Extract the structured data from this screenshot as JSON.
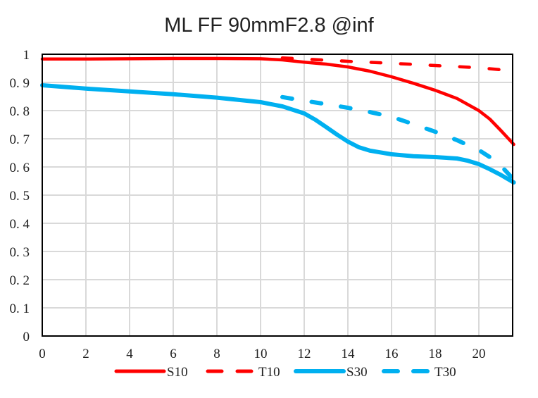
{
  "chart_data": {
    "type": "line",
    "title": "ML FF 90mmF2.8 @inf",
    "xlabel": "",
    "ylabel": "",
    "xlim": [
      0,
      21.6
    ],
    "ylim": [
      0,
      1
    ],
    "grid": true,
    "legend_position": "bottom",
    "x_ticks": [
      "0",
      "2",
      "4",
      "6",
      "8",
      "10",
      "12",
      "14",
      "16",
      "18",
      "20"
    ],
    "x_tick_values": [
      0,
      2,
      4,
      6,
      8,
      10,
      12,
      14,
      16,
      18,
      20
    ],
    "y_ticks": [
      "0",
      "0. 1",
      "0. 2",
      "0. 3",
      "0. 4",
      "0. 5",
      "0. 6",
      "0. 7",
      "0. 8",
      "0. 9",
      "1"
    ],
    "y_tick_values": [
      0,
      0.1,
      0.2,
      0.3,
      0.4,
      0.5,
      0.6,
      0.7,
      0.8,
      0.9,
      1
    ],
    "series": [
      {
        "name": "S10",
        "color": "#ff0000",
        "dash": false,
        "x": [
          0,
          2,
          4,
          6,
          8,
          10,
          11,
          12,
          13,
          14,
          15,
          16,
          17,
          18,
          19,
          20,
          20.5,
          21,
          21.6
        ],
        "y": [
          0.983,
          0.983,
          0.984,
          0.985,
          0.985,
          0.984,
          0.98,
          0.972,
          0.965,
          0.955,
          0.94,
          0.92,
          0.897,
          0.872,
          0.843,
          0.8,
          0.77,
          0.73,
          0.68
        ]
      },
      {
        "name": "T10",
        "color": "#ff0000",
        "dash": true,
        "x": [
          11,
          12,
          14,
          16,
          18,
          20,
          21,
          21.5
        ],
        "y": [
          0.987,
          0.983,
          0.975,
          0.968,
          0.96,
          0.952,
          0.945,
          0.94
        ]
      },
      {
        "name": "S30",
        "color": "#00b0f0",
        "dash": false,
        "x": [
          0,
          2,
          4,
          6,
          8,
          10,
          11,
          12,
          12.5,
          13,
          13.5,
          14,
          14.5,
          15,
          16,
          17,
          18,
          19,
          19.5,
          20,
          20.5,
          21,
          21.6
        ],
        "y": [
          0.89,
          0.878,
          0.868,
          0.858,
          0.846,
          0.83,
          0.815,
          0.79,
          0.768,
          0.742,
          0.715,
          0.69,
          0.67,
          0.658,
          0.645,
          0.638,
          0.635,
          0.63,
          0.622,
          0.61,
          0.592,
          0.572,
          0.545
        ]
      },
      {
        "name": "T30",
        "color": "#00b0f0",
        "dash": true,
        "x": [
          11,
          12,
          13,
          14,
          15,
          16,
          17,
          18,
          19,
          20,
          20.5,
          21,
          21.6
        ],
        "y": [
          0.848,
          0.835,
          0.823,
          0.81,
          0.795,
          0.778,
          0.752,
          0.725,
          0.695,
          0.66,
          0.635,
          0.605,
          0.555
        ]
      }
    ]
  }
}
